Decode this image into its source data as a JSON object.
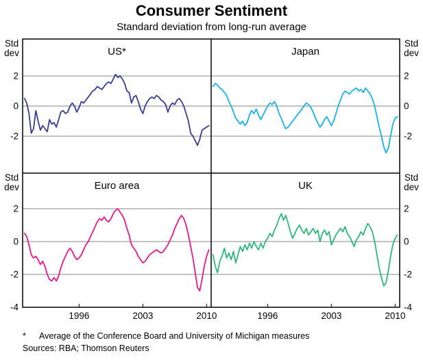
{
  "chart_data": {
    "type": "line",
    "title": "Consumer Sentiment",
    "subtitle": "Standard deviation from long-run average",
    "unit_label": "Std dev",
    "x_ticks": [
      1996,
      2003,
      2010
    ],
    "x_range": [
      1989.8,
      2010.5
    ],
    "grid_color": "#858585",
    "frame_color": "#000000",
    "rows": [
      {
        "y_ticks": [
          2,
          0,
          -2
        ],
        "ylim": [
          -4.45,
          4.45
        ]
      },
      {
        "y_ticks": [
          2,
          0,
          -2,
          -4
        ],
        "ylim": [
          -4,
          4.17
        ]
      }
    ],
    "panels": [
      {
        "title": "US*",
        "color": "#383b91",
        "row": 0,
        "col": 0,
        "x_start": 1990,
        "x_step": 0.25,
        "values": [
          0.5,
          0.2,
          -0.5,
          -1.8,
          -1.5,
          -0.3,
          -1.0,
          -1.6,
          -1.3,
          -1.5,
          -1.7,
          -0.9,
          -1.2,
          -1.1,
          -1.4,
          -0.9,
          -0.4,
          -0.3,
          -0.5,
          -0.4,
          0.0,
          0.2,
          0.0,
          -0.4,
          -0.1,
          0.3,
          0.2,
          0.4,
          0.6,
          0.8,
          1.0,
          1.1,
          1.3,
          1.2,
          1.1,
          1.3,
          1.5,
          1.6,
          1.5,
          1.8,
          2.1,
          1.9,
          2.0,
          1.8,
          1.5,
          1.0,
          0.9,
          0.2,
          0.6,
          0.7,
          0.3,
          -0.2,
          -0.5,
          0.0,
          0.3,
          0.5,
          0.6,
          0.5,
          0.7,
          0.6,
          0.4,
          0.3,
          0.1,
          -0.4,
          0.0,
          0.2,
          0.1,
          0.4,
          0.5,
          0.3,
          0.0,
          -0.5,
          -1.0,
          -1.8,
          -2.0,
          -2.3,
          -2.6,
          -2.2,
          -1.6,
          -1.5,
          -1.4,
          -1.3
        ]
      },
      {
        "title": "Japan",
        "color": "#16b1e7",
        "row": 0,
        "col": 1,
        "x_start": 1990,
        "x_step": 0.25,
        "values": [
          1.3,
          1.5,
          1.4,
          1.2,
          1.1,
          0.9,
          0.7,
          0.3,
          0.0,
          -0.4,
          -0.8,
          -1.0,
          -1.2,
          -1.0,
          -1.3,
          -1.1,
          -0.6,
          -0.3,
          -0.5,
          -0.2,
          -0.6,
          -0.9,
          -0.6,
          -0.3,
          0.0,
          0.2,
          0.1,
          0.3,
          0.0,
          -0.5,
          -0.8,
          -1.2,
          -1.5,
          -1.4,
          -1.2,
          -1.0,
          -0.8,
          -0.6,
          -0.4,
          -0.2,
          0.0,
          0.2,
          0.1,
          -0.1,
          -0.4,
          -0.8,
          -1.1,
          -1.4,
          -1.2,
          -0.9,
          -0.7,
          -1.0,
          -1.3,
          -1.0,
          -0.5,
          0.0,
          0.4,
          0.8,
          1.0,
          0.9,
          0.8,
          1.0,
          1.1,
          1.2,
          1.0,
          1.1,
          0.9,
          1.2,
          1.0,
          0.8,
          0.5,
          0.0,
          -0.7,
          -1.4,
          -2.0,
          -2.7,
          -3.1,
          -2.8,
          -2.0,
          -1.2,
          -0.8,
          -0.7
        ]
      },
      {
        "title": "Euro area",
        "color": "#e7168c",
        "row": 1,
        "col": 0,
        "x_start": 1990,
        "x_step": 0.25,
        "values": [
          0.5,
          0.3,
          -0.2,
          -0.8,
          -1.0,
          -0.9,
          -1.1,
          -1.4,
          -1.2,
          -1.5,
          -2.0,
          -2.3,
          -2.4,
          -2.2,
          -2.4,
          -2.1,
          -1.6,
          -1.2,
          -0.9,
          -0.6,
          -0.4,
          -0.6,
          -0.9,
          -1.1,
          -1.0,
          -0.8,
          -0.5,
          -0.2,
          0.0,
          0.3,
          0.6,
          0.9,
          1.2,
          1.4,
          1.3,
          1.5,
          1.3,
          1.2,
          1.4,
          1.7,
          1.9,
          2.0,
          1.8,
          1.6,
          1.3,
          0.8,
          0.4,
          -0.2,
          -0.4,
          -0.6,
          -0.9,
          -1.1,
          -1.3,
          -1.2,
          -1.0,
          -0.8,
          -0.7,
          -0.6,
          -0.5,
          -0.6,
          -0.7,
          -0.6,
          -0.4,
          -0.2,
          0.1,
          0.4,
          0.8,
          1.1,
          1.4,
          1.6,
          1.4,
          1.0,
          0.4,
          -0.3,
          -1.0,
          -1.9,
          -2.8,
          -3.0,
          -2.3,
          -1.5,
          -0.9,
          -0.5
        ]
      },
      {
        "title": "UK",
        "color": "#2fb47c",
        "row": 1,
        "col": 1,
        "x_start": 1990,
        "x_step": 0.25,
        "values": [
          -0.8,
          -1.5,
          -1.9,
          -1.2,
          -0.9,
          -0.4,
          -1.0,
          -0.7,
          -1.1,
          -0.6,
          -1.3,
          -0.8,
          -0.3,
          -0.6,
          -0.2,
          -0.5,
          -0.1,
          -0.4,
          0.0,
          -0.3,
          -0.5,
          -0.1,
          -0.4,
          0.0,
          0.2,
          0.5,
          0.3,
          0.7,
          1.0,
          1.4,
          1.7,
          1.3,
          1.6,
          1.1,
          0.6,
          0.2,
          0.5,
          0.8,
          1.0,
          0.7,
          0.5,
          0.8,
          0.4,
          0.6,
          0.8,
          0.5,
          0.7,
          0.0,
          0.5,
          0.7,
          0.4,
          0.6,
          -0.2,
          0.1,
          0.4,
          0.6,
          0.8,
          0.6,
          0.9,
          0.5,
          0.3,
          0.0,
          -0.3,
          0.1,
          0.3,
          0.6,
          0.4,
          0.8,
          1.1,
          0.9,
          0.6,
          0.0,
          -0.8,
          -1.6,
          -2.2,
          -2.7,
          -2.5,
          -1.8,
          -0.9,
          -0.2,
          0.2,
          0.4
        ]
      }
    ]
  },
  "footnotes": {
    "marker": "*",
    "note": "Average of the Conference Board and University of Michigan measures",
    "sources": "Sources: RBA; Thomson Reuters"
  }
}
